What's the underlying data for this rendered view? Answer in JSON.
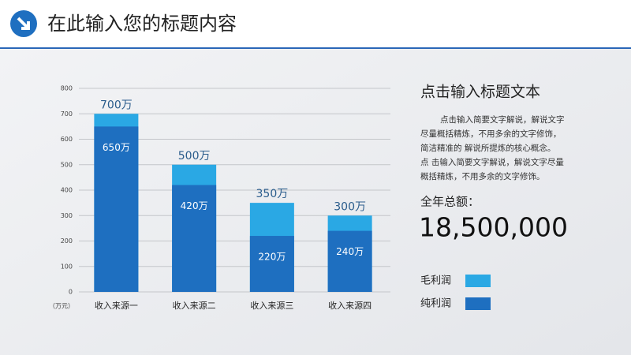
{
  "header": {
    "title": "在此输入您的标题内容"
  },
  "chart_data": {
    "type": "bar",
    "categories": [
      "收入来源一",
      "收入来源二",
      "收入来源三",
      "收入来源四"
    ],
    "series": [
      {
        "name": "毛利润",
        "color": "#2aa8e4",
        "values": [
          700,
          500,
          350,
          300
        ],
        "value_labels": [
          "700万",
          "500万",
          "350万",
          "300万"
        ]
      },
      {
        "name": "纯利润",
        "color": "#1e6fc0",
        "values": [
          650,
          420,
          220,
          240
        ],
        "value_labels": [
          "650万",
          "420万",
          "220万",
          "240万"
        ]
      }
    ],
    "ylim": [
      0,
      800
    ],
    "yticks": [
      0,
      100,
      200,
      300,
      400,
      500,
      600,
      700,
      800
    ],
    "grid": true,
    "y_unit": "（万元）",
    "legend": "right"
  },
  "panel": {
    "subtitle": "点击输入标题文本",
    "paragraph": [
      "点击输入简要文字解说，解说文字",
      "尽量概括精炼，不用多余的文字修饰，",
      "简洁精准的 解说所提炼的核心概念。",
      "点 击输入简要文字解说，解说文字尽量",
      "概括精炼，不用多余的文字修饰。"
    ],
    "total_label": "全年总额：",
    "total_value": "18,500,000"
  }
}
